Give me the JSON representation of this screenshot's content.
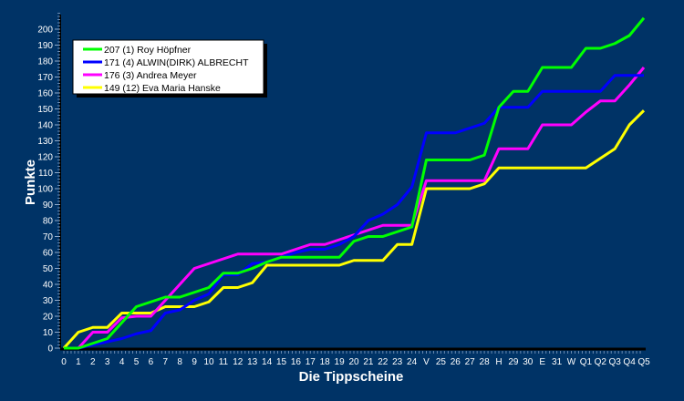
{
  "chart_data": {
    "type": "line",
    "xlabel": "Die Tippscheine",
    "ylabel": "Punkte",
    "ylim": [
      0,
      210
    ],
    "yticks": [
      0,
      10,
      20,
      30,
      40,
      50,
      60,
      70,
      80,
      90,
      100,
      110,
      120,
      130,
      140,
      150,
      160,
      170,
      180,
      190,
      200
    ],
    "grid": false,
    "legend_position": "top-left",
    "background": "#003366",
    "categories": [
      "0",
      "1",
      "2",
      "3",
      "4",
      "5",
      "6",
      "7",
      "8",
      "9",
      "10",
      "11",
      "12",
      "13",
      "14",
      "15",
      "16",
      "17",
      "18",
      "19",
      "20",
      "21",
      "22",
      "23",
      "24",
      "V",
      "25",
      "26",
      "27",
      "28",
      "H",
      "29",
      "30",
      "E",
      "31",
      "W",
      "Q1",
      "Q2",
      "Q3",
      "Q4",
      "Q5"
    ],
    "series": [
      {
        "name": "207 (1) Roy Höpfner",
        "color": "#00ff00",
        "values": [
          0,
          0,
          3,
          6,
          16,
          26,
          29,
          32,
          32,
          35,
          38,
          47,
          47,
          50,
          54,
          57,
          57,
          57,
          57,
          57,
          67,
          70,
          70,
          73,
          76,
          118,
          118,
          118,
          118,
          121,
          151,
          161,
          161,
          176,
          176,
          176,
          188,
          188,
          191,
          196,
          207
        ]
      },
      {
        "name": "171 (4) ALWIN(DIRK) ALBRECHT",
        "color": "#0000ff",
        "values": [
          0,
          0,
          2,
          4,
          6,
          9,
          11,
          22,
          24,
          30,
          34,
          46,
          46,
          53,
          54,
          57,
          60,
          62,
          62,
          65,
          70,
          80,
          84,
          90,
          101,
          135,
          135,
          135,
          138,
          141,
          151,
          151,
          151,
          161,
          161,
          161,
          161,
          161,
          171,
          171,
          171
        ]
      },
      {
        "name": "176 (3) Andrea Meyer",
        "color": "#ff00ff",
        "values": [
          0,
          0,
          10,
          10,
          19,
          20,
          20,
          30,
          40,
          50,
          53,
          56,
          59,
          59,
          59,
          59,
          62,
          65,
          65,
          68,
          71,
          74,
          77,
          77,
          77,
          105,
          105,
          105,
          105,
          105,
          125,
          125,
          125,
          140,
          140,
          140,
          148,
          155,
          155,
          165,
          176
        ]
      },
      {
        "name": "149 (12) Eva Maria Hanske",
        "color": "#ffff00",
        "values": [
          0,
          10,
          13,
          13,
          22,
          22,
          22,
          26,
          26,
          26,
          29,
          38,
          38,
          41,
          52,
          52,
          52,
          52,
          52,
          52,
          55,
          55,
          55,
          65,
          65,
          100,
          100,
          100,
          100,
          103,
          113,
          113,
          113,
          113,
          113,
          113,
          113,
          119,
          125,
          140,
          149
        ]
      }
    ]
  }
}
